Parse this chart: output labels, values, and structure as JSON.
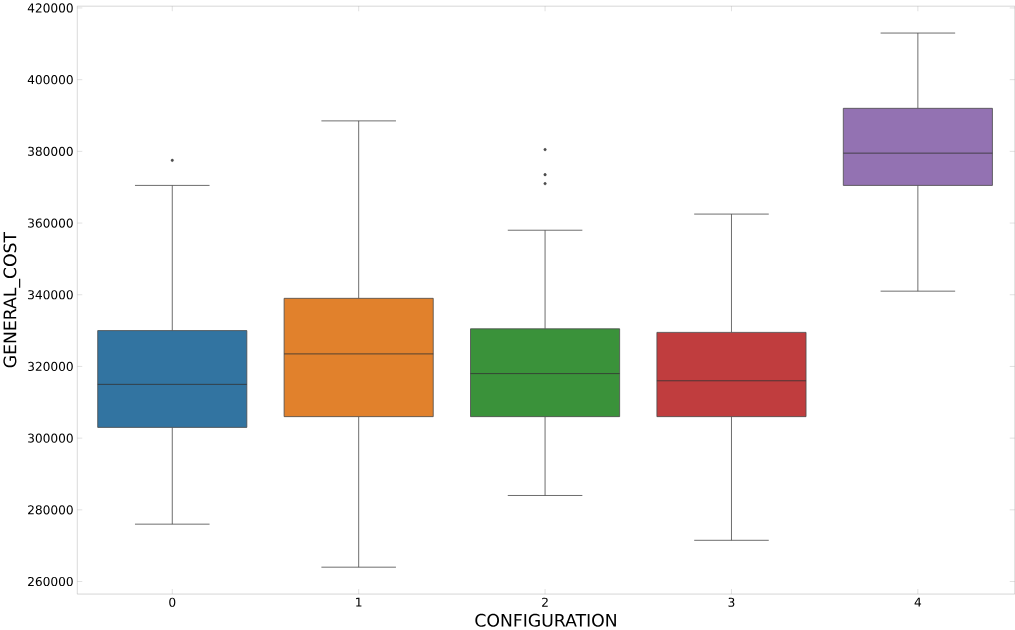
{
  "chart_data": {
    "type": "box",
    "xlabel": "CONFIGURATION",
    "ylabel": "GENERAL_COST",
    "categories": [
      "0",
      "1",
      "2",
      "3",
      "4"
    ],
    "colors": [
      "#3274a1",
      "#e1812c",
      "#3a923a",
      "#c03d3e",
      "#9372b2"
    ],
    "boxes": [
      {
        "low": 276000,
        "q1": 303000,
        "median": 315000,
        "q3": 330000,
        "high": 370500,
        "outliers": [
          377500
        ]
      },
      {
        "low": 264000,
        "q1": 306000,
        "median": 323500,
        "q3": 339000,
        "high": 388500
      },
      {
        "low": 284000,
        "q1": 306000,
        "median": 318000,
        "q3": 330500,
        "high": 358000,
        "outliers": [
          380500,
          373500,
          371000
        ]
      },
      {
        "low": 271500,
        "q1": 306000,
        "median": 316000,
        "q3": 329500,
        "high": 362500
      },
      {
        "low": 341000,
        "q1": 370500,
        "median": 379500,
        "q3": 392000,
        "high": 413000
      }
    ],
    "ylim": [
      256500,
      420500
    ],
    "yticks": [
      260000,
      280000,
      300000,
      320000,
      340000,
      360000,
      380000,
      400000,
      420000
    ],
    "line_style": "solid"
  }
}
